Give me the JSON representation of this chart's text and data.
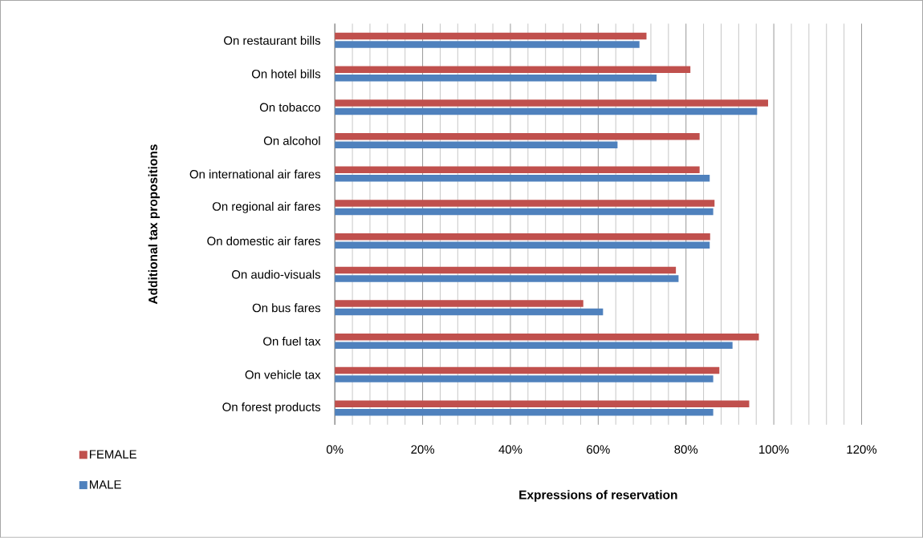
{
  "chart_data": {
    "type": "bar",
    "orientation": "horizontal",
    "xlabel": "Expressions of reservation",
    "ylabel": "Additional tax propositions",
    "categories": [
      "On restaurant bills",
      "On hotel bills",
      "On tobacco",
      "On alcohol",
      "On international air fares",
      "On regional air fares",
      "On domestic air fares",
      "On audio-visuals",
      "On bus fares",
      "On fuel tax",
      "On vehicle tax",
      "On forest products"
    ],
    "series": [
      {
        "name": "FEMALE",
        "color": "#c0504d",
        "values": [
          71.0,
          81.0,
          98.7,
          83.1,
          83.1,
          86.5,
          85.5,
          77.7,
          56.6,
          96.6,
          87.6,
          94.4
        ]
      },
      {
        "name": "MALE",
        "color": "#4f81bd",
        "values": [
          69.4,
          73.3,
          96.2,
          64.4,
          85.4,
          86.2,
          85.4,
          78.3,
          61.1,
          90.6,
          86.2,
          86.2
        ]
      }
    ],
    "xlim": [
      0,
      120
    ],
    "xticks": [
      {
        "value": 0,
        "label": "0%"
      },
      {
        "value": 20,
        "label": "20%"
      },
      {
        "value": 40,
        "label": "40%"
      },
      {
        "value": 60,
        "label": "60%"
      },
      {
        "value": 80,
        "label": "80%"
      },
      {
        "value": 100,
        "label": "100%"
      },
      {
        "value": 120,
        "label": "120%"
      }
    ],
    "grid": "x",
    "legend": "bottom left"
  }
}
